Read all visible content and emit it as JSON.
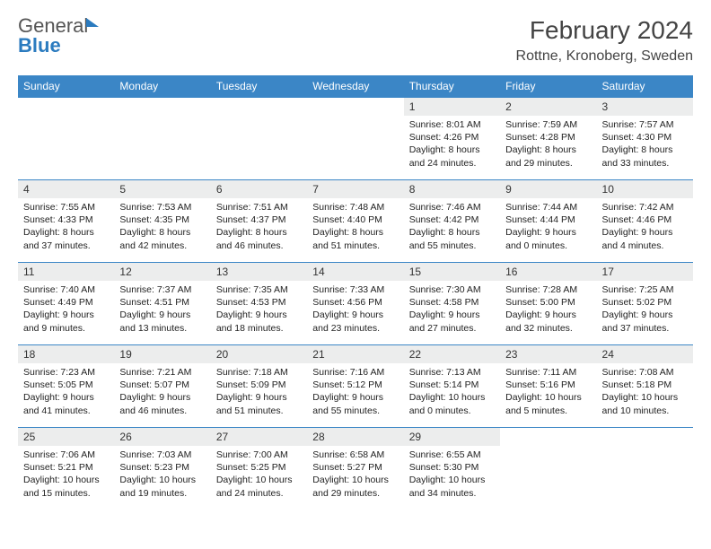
{
  "brand": {
    "part1": "General",
    "part2": "Blue"
  },
  "title": "February 2024",
  "location": "Rottne, Kronoberg, Sweden",
  "colors": {
    "header_bg": "#3b86c6",
    "header_text": "#ffffff",
    "daynum_bg": "#eceded",
    "border": "#3b86c6",
    "brand_gray": "#555555",
    "brand_blue": "#2b7bbf"
  },
  "weekdays": [
    "Sunday",
    "Monday",
    "Tuesday",
    "Wednesday",
    "Thursday",
    "Friday",
    "Saturday"
  ],
  "weeks": [
    [
      null,
      null,
      null,
      null,
      {
        "day": "1",
        "sunrise": "Sunrise: 8:01 AM",
        "sunset": "Sunset: 4:26 PM",
        "daylight": "Daylight: 8 hours and 24 minutes."
      },
      {
        "day": "2",
        "sunrise": "Sunrise: 7:59 AM",
        "sunset": "Sunset: 4:28 PM",
        "daylight": "Daylight: 8 hours and 29 minutes."
      },
      {
        "day": "3",
        "sunrise": "Sunrise: 7:57 AM",
        "sunset": "Sunset: 4:30 PM",
        "daylight": "Daylight: 8 hours and 33 minutes."
      }
    ],
    [
      {
        "day": "4",
        "sunrise": "Sunrise: 7:55 AM",
        "sunset": "Sunset: 4:33 PM",
        "daylight": "Daylight: 8 hours and 37 minutes."
      },
      {
        "day": "5",
        "sunrise": "Sunrise: 7:53 AM",
        "sunset": "Sunset: 4:35 PM",
        "daylight": "Daylight: 8 hours and 42 minutes."
      },
      {
        "day": "6",
        "sunrise": "Sunrise: 7:51 AM",
        "sunset": "Sunset: 4:37 PM",
        "daylight": "Daylight: 8 hours and 46 minutes."
      },
      {
        "day": "7",
        "sunrise": "Sunrise: 7:48 AM",
        "sunset": "Sunset: 4:40 PM",
        "daylight": "Daylight: 8 hours and 51 minutes."
      },
      {
        "day": "8",
        "sunrise": "Sunrise: 7:46 AM",
        "sunset": "Sunset: 4:42 PM",
        "daylight": "Daylight: 8 hours and 55 minutes."
      },
      {
        "day": "9",
        "sunrise": "Sunrise: 7:44 AM",
        "sunset": "Sunset: 4:44 PM",
        "daylight": "Daylight: 9 hours and 0 minutes."
      },
      {
        "day": "10",
        "sunrise": "Sunrise: 7:42 AM",
        "sunset": "Sunset: 4:46 PM",
        "daylight": "Daylight: 9 hours and 4 minutes."
      }
    ],
    [
      {
        "day": "11",
        "sunrise": "Sunrise: 7:40 AM",
        "sunset": "Sunset: 4:49 PM",
        "daylight": "Daylight: 9 hours and 9 minutes."
      },
      {
        "day": "12",
        "sunrise": "Sunrise: 7:37 AM",
        "sunset": "Sunset: 4:51 PM",
        "daylight": "Daylight: 9 hours and 13 minutes."
      },
      {
        "day": "13",
        "sunrise": "Sunrise: 7:35 AM",
        "sunset": "Sunset: 4:53 PM",
        "daylight": "Daylight: 9 hours and 18 minutes."
      },
      {
        "day": "14",
        "sunrise": "Sunrise: 7:33 AM",
        "sunset": "Sunset: 4:56 PM",
        "daylight": "Daylight: 9 hours and 23 minutes."
      },
      {
        "day": "15",
        "sunrise": "Sunrise: 7:30 AM",
        "sunset": "Sunset: 4:58 PM",
        "daylight": "Daylight: 9 hours and 27 minutes."
      },
      {
        "day": "16",
        "sunrise": "Sunrise: 7:28 AM",
        "sunset": "Sunset: 5:00 PM",
        "daylight": "Daylight: 9 hours and 32 minutes."
      },
      {
        "day": "17",
        "sunrise": "Sunrise: 7:25 AM",
        "sunset": "Sunset: 5:02 PM",
        "daylight": "Daylight: 9 hours and 37 minutes."
      }
    ],
    [
      {
        "day": "18",
        "sunrise": "Sunrise: 7:23 AM",
        "sunset": "Sunset: 5:05 PM",
        "daylight": "Daylight: 9 hours and 41 minutes."
      },
      {
        "day": "19",
        "sunrise": "Sunrise: 7:21 AM",
        "sunset": "Sunset: 5:07 PM",
        "daylight": "Daylight: 9 hours and 46 minutes."
      },
      {
        "day": "20",
        "sunrise": "Sunrise: 7:18 AM",
        "sunset": "Sunset: 5:09 PM",
        "daylight": "Daylight: 9 hours and 51 minutes."
      },
      {
        "day": "21",
        "sunrise": "Sunrise: 7:16 AM",
        "sunset": "Sunset: 5:12 PM",
        "daylight": "Daylight: 9 hours and 55 minutes."
      },
      {
        "day": "22",
        "sunrise": "Sunrise: 7:13 AM",
        "sunset": "Sunset: 5:14 PM",
        "daylight": "Daylight: 10 hours and 0 minutes."
      },
      {
        "day": "23",
        "sunrise": "Sunrise: 7:11 AM",
        "sunset": "Sunset: 5:16 PM",
        "daylight": "Daylight: 10 hours and 5 minutes."
      },
      {
        "day": "24",
        "sunrise": "Sunrise: 7:08 AM",
        "sunset": "Sunset: 5:18 PM",
        "daylight": "Daylight: 10 hours and 10 minutes."
      }
    ],
    [
      {
        "day": "25",
        "sunrise": "Sunrise: 7:06 AM",
        "sunset": "Sunset: 5:21 PM",
        "daylight": "Daylight: 10 hours and 15 minutes."
      },
      {
        "day": "26",
        "sunrise": "Sunrise: 7:03 AM",
        "sunset": "Sunset: 5:23 PM",
        "daylight": "Daylight: 10 hours and 19 minutes."
      },
      {
        "day": "27",
        "sunrise": "Sunrise: 7:00 AM",
        "sunset": "Sunset: 5:25 PM",
        "daylight": "Daylight: 10 hours and 24 minutes."
      },
      {
        "day": "28",
        "sunrise": "Sunrise: 6:58 AM",
        "sunset": "Sunset: 5:27 PM",
        "daylight": "Daylight: 10 hours and 29 minutes."
      },
      {
        "day": "29",
        "sunrise": "Sunrise: 6:55 AM",
        "sunset": "Sunset: 5:30 PM",
        "daylight": "Daylight: 10 hours and 34 minutes."
      },
      null,
      null
    ]
  ]
}
